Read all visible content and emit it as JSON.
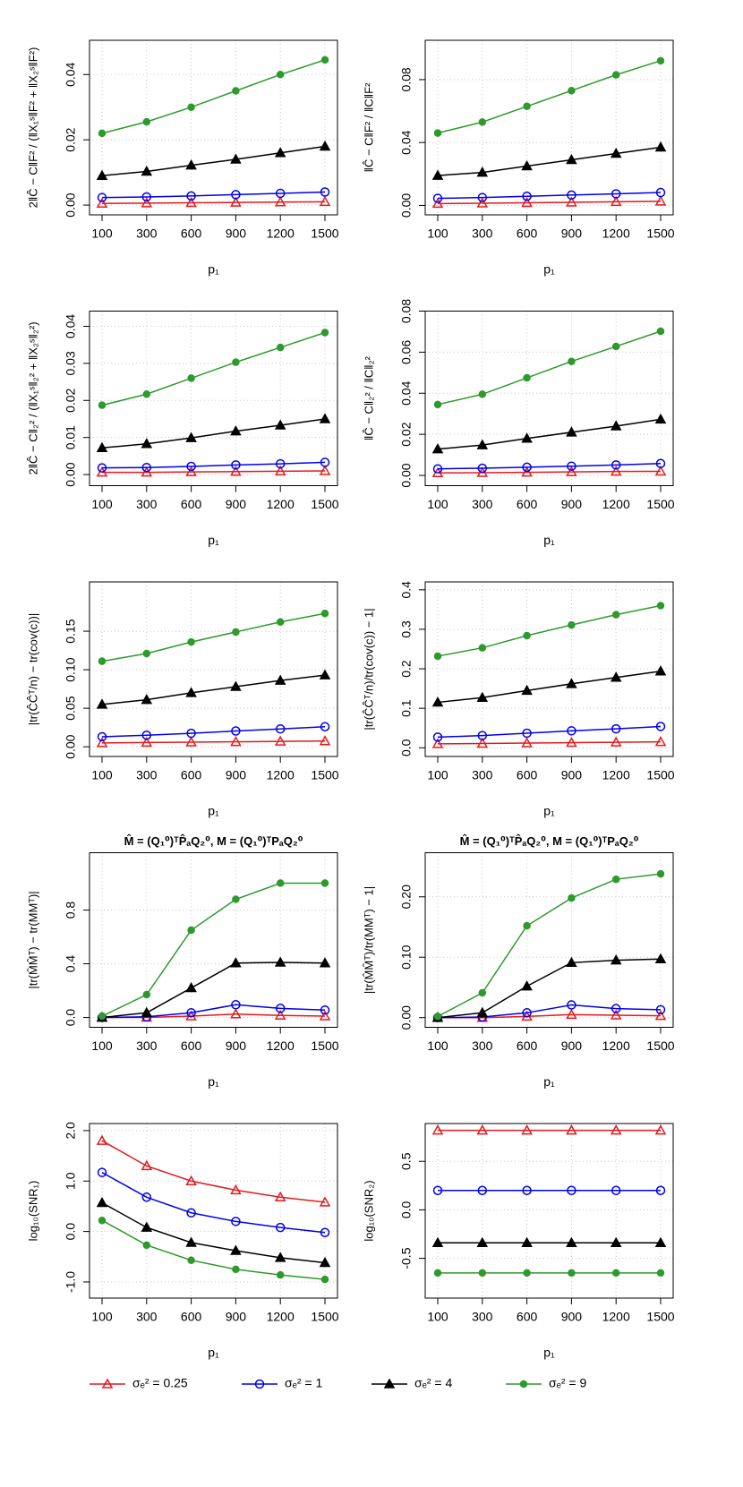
{
  "chart_data": [
    {
      "type": "line",
      "ylabel": "2‖Ĉ − C‖F² / (‖X₁ˢ‖F² + ‖X₂ˢ‖F²)",
      "xlabel": "p₁",
      "categories": [
        "100",
        "300",
        "600",
        "900",
        "1200",
        "1500"
      ],
      "ylim": [
        -0.003,
        0.0505
      ],
      "yticks": [
        {
          "value": 0,
          "label": "0.00"
        },
        0.02,
        0.04
      ],
      "grid": true,
      "series": [
        {
          "color": "#e41a1c",
          "marker": "triangle-open",
          "values": [
            0.0005,
            0.0006,
            0.0007,
            0.0008,
            0.0009,
            0.001
          ]
        },
        {
          "color": "#0000ee",
          "marker": "circle-open",
          "values": [
            0.0023,
            0.0025,
            0.0028,
            0.0032,
            0.0036,
            0.004
          ]
        },
        {
          "color": "#000000",
          "marker": "triangle-filled",
          "values": [
            0.009,
            0.0103,
            0.0122,
            0.014,
            0.016,
            0.018
          ]
        },
        {
          "color": "#2e9a2e",
          "marker": "circle-filled",
          "values": [
            0.022,
            0.0255,
            0.03,
            0.035,
            0.04,
            0.0445
          ]
        }
      ]
    },
    {
      "type": "line",
      "ylabel": "‖Ĉ − C‖F² / ‖C‖F²",
      "xlabel": "p₁",
      "categories": [
        "100",
        "300",
        "600",
        "900",
        "1200",
        "1500"
      ],
      "ylim": [
        -0.006,
        0.105
      ],
      "yticks": [
        {
          "value": 0,
          "label": "0.00"
        },
        0.04,
        0.08
      ],
      "grid": true,
      "series": [
        {
          "color": "#e41a1c",
          "marker": "triangle-open",
          "values": [
            0.0012,
            0.0014,
            0.0017,
            0.002,
            0.0023,
            0.0026
          ]
        },
        {
          "color": "#0000ee",
          "marker": "circle-open",
          "values": [
            0.0045,
            0.005,
            0.0058,
            0.0066,
            0.0074,
            0.0082
          ]
        },
        {
          "color": "#000000",
          "marker": "triangle-filled",
          "values": [
            0.019,
            0.021,
            0.025,
            0.029,
            0.033,
            0.037
          ]
        },
        {
          "color": "#2e9a2e",
          "marker": "circle-filled",
          "values": [
            0.046,
            0.053,
            0.063,
            0.073,
            0.083,
            0.092
          ]
        }
      ]
    },
    {
      "type": "line",
      "ylabel": "2‖Ĉ − C‖₂² / (‖X₁ˢ‖₂² + ‖X₂ˢ‖₂²)",
      "xlabel": "p₁",
      "categories": [
        "100",
        "300",
        "600",
        "900",
        "1200",
        "1500"
      ],
      "ylim": [
        -0.003,
        0.0441
      ],
      "yticks": [
        {
          "value": 0,
          "label": "0.00"
        },
        0.01,
        0.02,
        0.03,
        0.04
      ],
      "grid": true,
      "series": [
        {
          "color": "#e41a1c",
          "marker": "triangle-open",
          "values": [
            0.0006,
            0.0006,
            0.0007,
            0.0008,
            0.0009,
            0.001
          ]
        },
        {
          "color": "#0000ee",
          "marker": "circle-open",
          "values": [
            0.0018,
            0.0019,
            0.0022,
            0.0026,
            0.0029,
            0.0033
          ]
        },
        {
          "color": "#000000",
          "marker": "triangle-filled",
          "values": [
            0.0072,
            0.0083,
            0.0099,
            0.0117,
            0.0133,
            0.015
          ]
        },
        {
          "color": "#2e9a2e",
          "marker": "circle-filled",
          "values": [
            0.0187,
            0.0217,
            0.026,
            0.0303,
            0.0343,
            0.0383
          ]
        }
      ]
    },
    {
      "type": "line",
      "ylabel": "‖Ĉ − C‖₂² / ‖C‖₂²",
      "xlabel": "p₁",
      "categories": [
        "100",
        "300",
        "600",
        "900",
        "1200",
        "1500"
      ],
      "ylim": [
        -0.005,
        0.08
      ],
      "yticks": [
        {
          "value": 0,
          "label": "0.00"
        },
        0.02,
        0.04,
        0.06,
        0.08
      ],
      "grid": true,
      "series": [
        {
          "color": "#e41a1c",
          "marker": "triangle-open",
          "values": [
            0.0012,
            0.0013,
            0.0015,
            0.0017,
            0.0019,
            0.002
          ]
        },
        {
          "color": "#0000ee",
          "marker": "circle-open",
          "values": [
            0.0032,
            0.0035,
            0.004,
            0.0045,
            0.0051,
            0.0058
          ]
        },
        {
          "color": "#000000",
          "marker": "triangle-filled",
          "values": [
            0.0128,
            0.0148,
            0.018,
            0.021,
            0.024,
            0.0273
          ]
        },
        {
          "color": "#2e9a2e",
          "marker": "circle-filled",
          "values": [
            0.0345,
            0.0395,
            0.0475,
            0.0555,
            0.0628,
            0.0702
          ]
        }
      ]
    },
    {
      "type": "line",
      "ylabel": "|tr(ĈĈᵀ/n) − tr(cov(c))|",
      "xlabel": "p₁",
      "categories": [
        "100",
        "300",
        "600",
        "900",
        "1200",
        "1500"
      ],
      "ylim": [
        -0.0126,
        0.214
      ],
      "yticks": [
        {
          "value": 0,
          "label": "0.00"
        },
        0.05,
        {
          "value": 0.1,
          "label": "0.10"
        },
        0.15
      ],
      "grid": true,
      "series": [
        {
          "color": "#e41a1c",
          "marker": "triangle-open",
          "values": [
            0.005,
            0.0055,
            0.006,
            0.0065,
            0.007,
            0.0075
          ]
        },
        {
          "color": "#0000ee",
          "marker": "circle-open",
          "values": [
            0.013,
            0.015,
            0.0175,
            0.0205,
            0.0232,
            0.026
          ]
        },
        {
          "color": "#000000",
          "marker": "triangle-filled",
          "values": [
            0.055,
            0.061,
            0.07,
            0.078,
            0.086,
            0.093
          ]
        },
        {
          "color": "#2e9a2e",
          "marker": "circle-filled",
          "values": [
            0.111,
            0.121,
            0.136,
            0.149,
            0.162,
            0.173
          ]
        }
      ]
    },
    {
      "type": "line",
      "ylabel": "|tr(ĈĈᵀ/n)/tr(cov(c)) − 1|",
      "xlabel": "p₁",
      "categories": [
        "100",
        "300",
        "600",
        "900",
        "1200",
        "1500"
      ],
      "ylim": [
        -0.022,
        0.42
      ],
      "yticks": [
        {
          "value": 0,
          "label": "0.0"
        },
        0.1,
        0.2,
        0.3,
        0.4
      ],
      "grid": true,
      "series": [
        {
          "color": "#e41a1c",
          "marker": "triangle-open",
          "values": [
            0.01,
            0.011,
            0.012,
            0.013,
            0.014,
            0.015
          ]
        },
        {
          "color": "#0000ee",
          "marker": "circle-open",
          "values": [
            0.027,
            0.031,
            0.037,
            0.043,
            0.048,
            0.054
          ]
        },
        {
          "color": "#000000",
          "marker": "triangle-filled",
          "values": [
            0.115,
            0.127,
            0.145,
            0.162,
            0.178,
            0.194
          ]
        },
        {
          "color": "#2e9a2e",
          "marker": "circle-filled",
          "values": [
            0.232,
            0.253,
            0.284,
            0.311,
            0.337,
            0.36
          ]
        }
      ]
    },
    {
      "type": "line",
      "title": "M̂ = (Q₁⁰)ᵀP̂ₐQ₂⁰,  M = (Q₁⁰)ᵀPₐQ₂⁰",
      "ylabel": "|tr(M̂M̂ᵀ) − tr(MMᵀ)|",
      "xlabel": "p₁",
      "categories": [
        "100",
        "300",
        "600",
        "900",
        "1200",
        "1500"
      ],
      "ylim": [
        -0.073,
        1.227
      ],
      "yticks": [
        {
          "value": 0,
          "label": "0.0"
        },
        0.4,
        0.8
      ],
      "grid": true,
      "series": [
        {
          "color": "#e41a1c",
          "marker": "triangle-open",
          "values": [
            0,
            0,
            0.01,
            0.025,
            0.015,
            0.01
          ]
        },
        {
          "color": "#0000ee",
          "marker": "circle-open",
          "values": [
            0,
            0.005,
            0.035,
            0.095,
            0.068,
            0.055
          ]
        },
        {
          "color": "#000000",
          "marker": "triangle-filled",
          "values": [
            0,
            0.035,
            0.22,
            0.405,
            0.41,
            0.405
          ]
        },
        {
          "color": "#2e9a2e",
          "marker": "circle-filled",
          "values": [
            0.01,
            0.17,
            0.65,
            0.88,
            1.0,
            1.0
          ]
        }
      ]
    },
    {
      "type": "line",
      "title": "M̂ = (Q₁⁰)ᵀP̂ₐQ₂⁰,  M = (Q₁⁰)ᵀPₐQ₂⁰",
      "ylabel": "|tr(M̂M̂ᵀ)/tr(MMᵀ) − 1|",
      "xlabel": "p₁",
      "categories": [
        "100",
        "300",
        "600",
        "900",
        "1200",
        "1500"
      ],
      "ylim": [
        -0.016,
        0.273
      ],
      "yticks": [
        {
          "value": 0,
          "label": "0.00"
        },
        {
          "value": 0.1,
          "label": "0.10"
        },
        {
          "value": 0.2,
          "label": "0.20"
        }
      ],
      "grid": true,
      "series": [
        {
          "color": "#e41a1c",
          "marker": "triangle-open",
          "values": [
            0,
            0,
            0.002,
            0.005,
            0.004,
            0.003
          ]
        },
        {
          "color": "#0000ee",
          "marker": "circle-open",
          "values": [
            0,
            0.001,
            0.008,
            0.021,
            0.015,
            0.013
          ]
        },
        {
          "color": "#000000",
          "marker": "triangle-filled",
          "values": [
            0,
            0.008,
            0.052,
            0.091,
            0.095,
            0.097
          ]
        },
        {
          "color": "#2e9a2e",
          "marker": "circle-filled",
          "values": [
            0.002,
            0.041,
            0.152,
            0.198,
            0.229,
            0.238
          ]
        }
      ]
    },
    {
      "type": "line",
      "ylabel": "log₁₀(SNR₁)",
      "xlabel": "p₁",
      "categories": [
        "100",
        "300",
        "600",
        "900",
        "1200",
        "1500"
      ],
      "ylim": [
        -1.32,
        2.14
      ],
      "yticks": [
        {
          "value": -1,
          "label": "-1.0"
        },
        {
          "value": 0,
          "label": "0.0"
        },
        {
          "value": 1,
          "label": "1.0"
        },
        {
          "value": 2,
          "label": "2.0"
        }
      ],
      "grid": true,
      "series": [
        {
          "color": "#e41a1c",
          "marker": "triangle-open",
          "values": [
            1.8,
            1.3,
            1.0,
            0.82,
            0.68,
            0.58
          ]
        },
        {
          "color": "#0000ee",
          "marker": "circle-open",
          "values": [
            1.17,
            0.68,
            0.37,
            0.2,
            0.08,
            -0.02
          ]
        },
        {
          "color": "#000000",
          "marker": "triangle-filled",
          "values": [
            0.57,
            0.08,
            -0.22,
            -0.38,
            -0.52,
            -0.62
          ]
        },
        {
          "color": "#2e9a2e",
          "marker": "circle-filled",
          "values": [
            0.22,
            -0.27,
            -0.57,
            -0.75,
            -0.86,
            -0.95
          ]
        }
      ]
    },
    {
      "type": "line",
      "ylabel": "log₁₀(SNR₂)",
      "xlabel": "p₁",
      "categories": [
        "100",
        "300",
        "600",
        "900",
        "1200",
        "1500"
      ],
      "ylim": [
        -0.91,
        0.89
      ],
      "yticks": [
        -0.5,
        {
          "value": 0,
          "label": "0.0"
        },
        0.5
      ],
      "grid": true,
      "series": [
        {
          "color": "#e41a1c",
          "marker": "triangle-open",
          "values": [
            0.82,
            0.82,
            0.82,
            0.82,
            0.82,
            0.82
          ]
        },
        {
          "color": "#0000ee",
          "marker": "circle-open",
          "values": [
            0.2,
            0.2,
            0.2,
            0.2,
            0.2,
            0.2
          ]
        },
        {
          "color": "#000000",
          "marker": "triangle-filled",
          "values": [
            -0.34,
            -0.34,
            -0.34,
            -0.34,
            -0.34,
            -0.34
          ]
        },
        {
          "color": "#2e9a2e",
          "marker": "circle-filled",
          "values": [
            -0.65,
            -0.65,
            -0.65,
            -0.65,
            -0.65,
            -0.65
          ]
        }
      ]
    }
  ],
  "legend": [
    {
      "name": "σₑ² = 0.25",
      "color": "#e41a1c",
      "marker": "triangle-open"
    },
    {
      "name": "σₑ² = 1",
      "color": "#0000ee",
      "marker": "circle-open"
    },
    {
      "name": "σₑ² = 4",
      "color": "#000000",
      "marker": "triangle-filled"
    },
    {
      "name": "σₑ² = 9",
      "color": "#2e9a2e",
      "marker": "circle-filled"
    }
  ]
}
